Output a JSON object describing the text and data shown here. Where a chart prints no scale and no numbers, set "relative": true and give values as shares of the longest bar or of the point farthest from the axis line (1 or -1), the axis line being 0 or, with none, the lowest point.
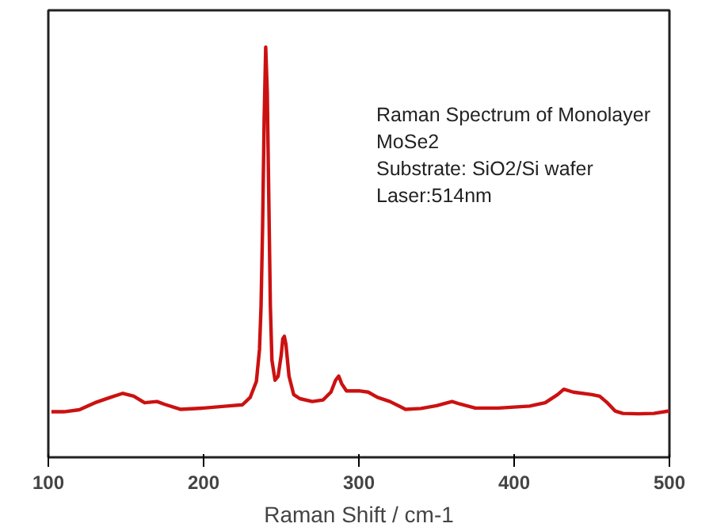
{
  "chart_data": {
    "type": "line",
    "relative": true,
    "xlabel": "Raman Shift / cm-1",
    "xlim": [
      100,
      500
    ],
    "xticks": [
      100,
      200,
      300,
      400,
      500
    ],
    "grid": false,
    "marker": "none",
    "line_style": "solid",
    "annotations": [
      "Raman Spectrum of Monolayer",
      "MoSe2",
      "Substrate: SiO2/Si wafer",
      "Laser:514nm"
    ],
    "series": [
      {
        "color": "#cc1111",
        "x": [
          102,
          110,
          120,
          130,
          140,
          148,
          155,
          162,
          170,
          175,
          185,
          200,
          215,
          225,
          230,
          234,
          236,
          237,
          238,
          239,
          240,
          241,
          242,
          243,
          244,
          246,
          248,
          250,
          251,
          252,
          253,
          255,
          258,
          262,
          270,
          277,
          282,
          285,
          287,
          289,
          292,
          300,
          306,
          312,
          320,
          330,
          340,
          350,
          360,
          365,
          375,
          390,
          410,
          420,
          428,
          432,
          438,
          450,
          455,
          460,
          465,
          470,
          480,
          490,
          500
        ],
        "values": [
          0.111,
          0.111,
          0.116,
          0.133,
          0.146,
          0.156,
          0.149,
          0.133,
          0.136,
          0.129,
          0.117,
          0.12,
          0.125,
          0.128,
          0.146,
          0.185,
          0.263,
          0.368,
          0.563,
          0.824,
          1,
          0.889,
          0.628,
          0.368,
          0.237,
          0.188,
          0.198,
          0.25,
          0.289,
          0.295,
          0.276,
          0.198,
          0.153,
          0.143,
          0.136,
          0.14,
          0.159,
          0.188,
          0.198,
          0.179,
          0.162,
          0.162,
          0.159,
          0.146,
          0.136,
          0.117,
          0.119,
          0.126,
          0.136,
          0.13,
          0.12,
          0.12,
          0.125,
          0.133,
          0.153,
          0.166,
          0.159,
          0.153,
          0.149,
          0.133,
          0.113,
          0.107,
          0.106,
          0.107,
          0.113
        ]
      }
    ]
  }
}
